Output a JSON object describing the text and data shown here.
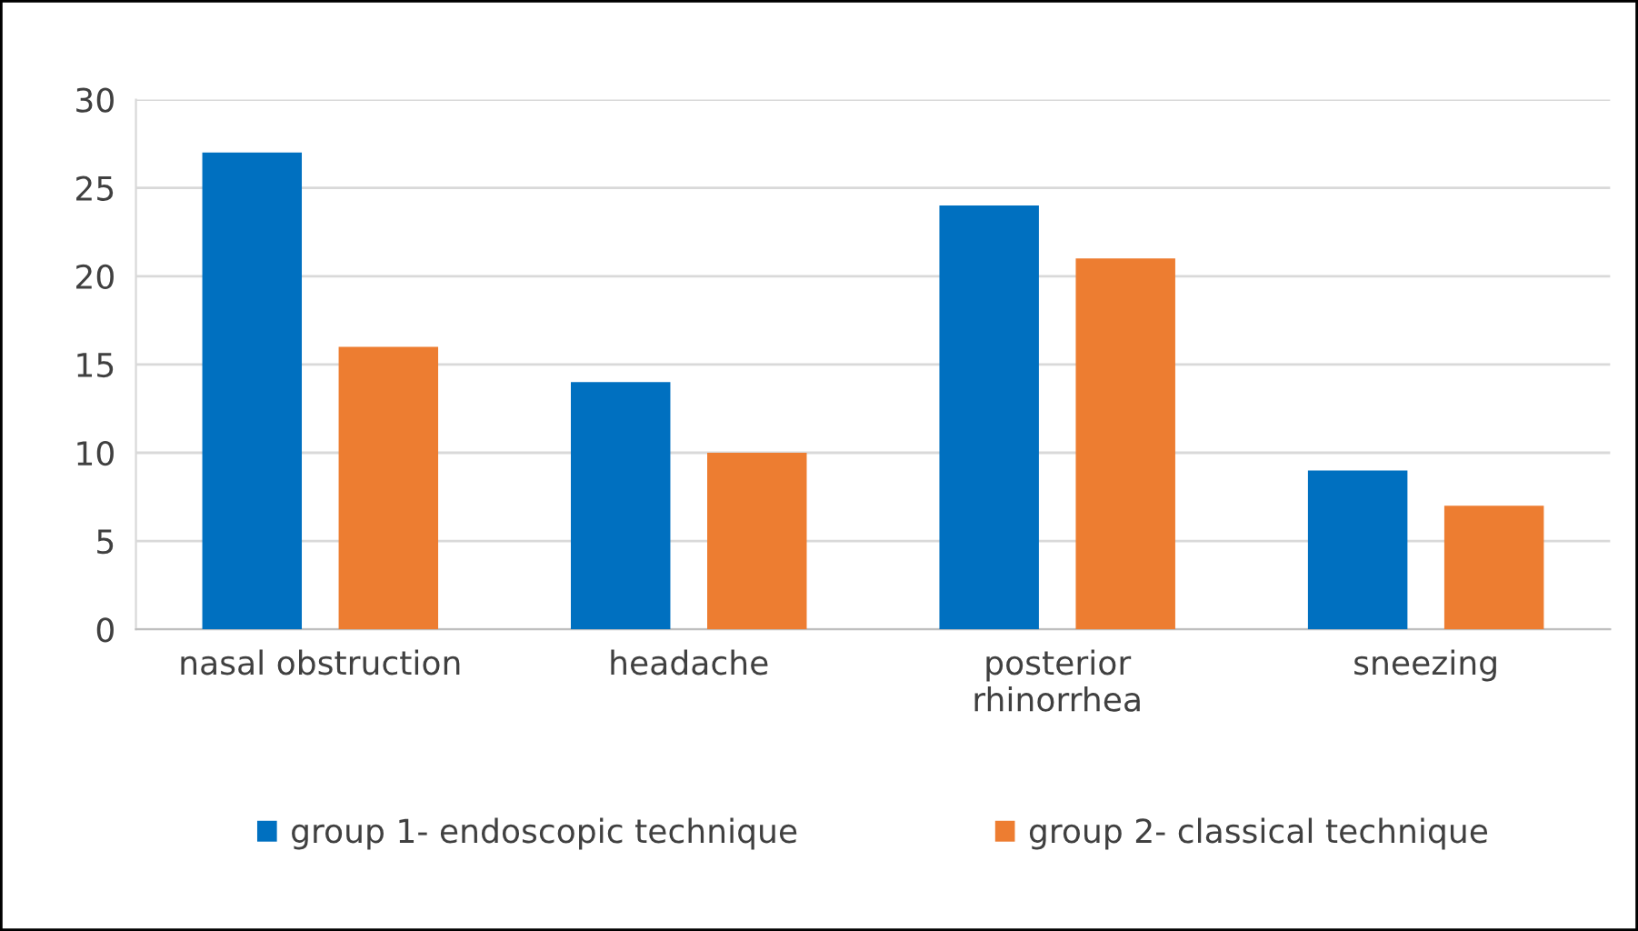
{
  "chart_data": {
    "type": "bar",
    "categories": [
      "nasal obstruction",
      "headache",
      "posterior\nrhinorrhea",
      "sneezing"
    ],
    "series": [
      {
        "name": "group 1- endoscopic technique",
        "color": "#0070c0",
        "values": [
          27,
          14,
          24,
          9
        ]
      },
      {
        "name": "group 2- classical technique",
        "color": "#ed7d31",
        "values": [
          16,
          10,
          21,
          7
        ]
      }
    ],
    "ylim": [
      0,
      30
    ],
    "yticks": [
      0,
      5,
      10,
      15,
      20,
      25,
      30
    ],
    "grid": "y",
    "legend": "bottom"
  }
}
